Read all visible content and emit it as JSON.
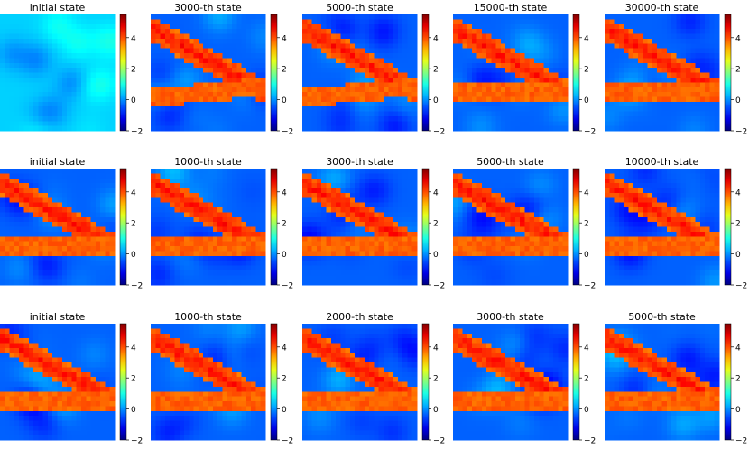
{
  "chart_data": {
    "type": "heatmap",
    "colormap": "jet",
    "colorbar": {
      "range": [
        -2,
        5.5
      ],
      "ticks": [
        -2,
        0,
        2,
        4
      ],
      "tick_labels": [
        "−2",
        "0",
        "2",
        "4"
      ]
    },
    "rows": [
      {
        "panels": [
          {
            "title": "initial state",
            "pattern": "none"
          },
          {
            "title": "3000-th state",
            "pattern": "early"
          },
          {
            "title": "5000-th state",
            "pattern": "early"
          },
          {
            "title": "15000-th state",
            "pattern": "two-bands"
          },
          {
            "title": "30000-th state",
            "pattern": "two-bands"
          }
        ]
      },
      {
        "panels": [
          {
            "title": "initial state",
            "pattern": "two-bands"
          },
          {
            "title": "1000-th state",
            "pattern": "two-bands"
          },
          {
            "title": "3000-th state",
            "pattern": "two-bands"
          },
          {
            "title": "5000-th state",
            "pattern": "two-bands"
          },
          {
            "title": "10000-th state",
            "pattern": "two-bands"
          }
        ]
      },
      {
        "panels": [
          {
            "title": "initial state",
            "pattern": "two-bands"
          },
          {
            "title": "1000-th state",
            "pattern": "two-bands"
          },
          {
            "title": "2000-th state",
            "pattern": "two-bands"
          },
          {
            "title": "3000-th state",
            "pattern": "two-bands"
          },
          {
            "title": "5000-th state",
            "pattern": "two-bands"
          }
        ]
      }
    ]
  }
}
